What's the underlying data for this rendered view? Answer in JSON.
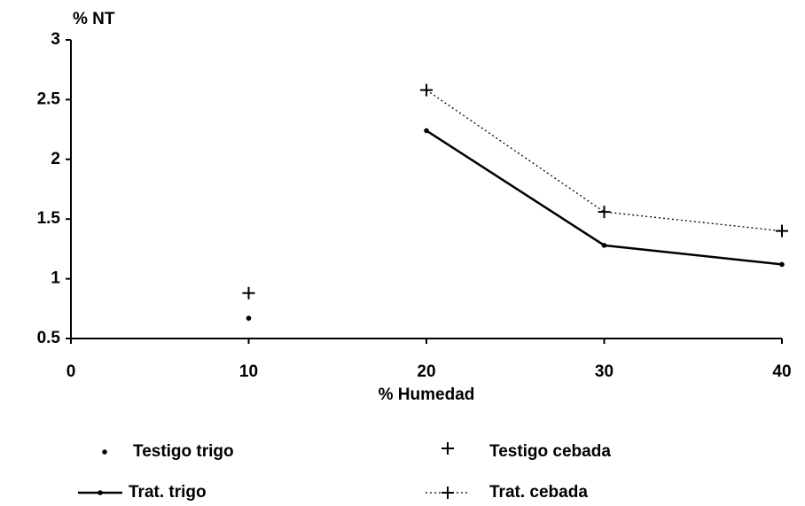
{
  "chart_data": {
    "type": "line",
    "y_label": "% NT",
    "x_label": "% Humedad",
    "x": [
      10,
      20,
      30,
      40
    ],
    "xlim": [
      0,
      40
    ],
    "xticks": [
      0,
      10,
      20,
      30,
      40
    ],
    "ylim": [
      0.5,
      3
    ],
    "yticks": [
      0.5,
      1,
      1.5,
      2,
      2.5,
      3
    ],
    "grid": false,
    "series": [
      {
        "name": "Testigo trigo",
        "color": "#000000",
        "marker": "dot",
        "line": "none",
        "values": [
          0.67,
          null,
          null,
          null
        ]
      },
      {
        "name": "Testigo cebada",
        "color": "#000000",
        "marker": "plus",
        "line": "none",
        "values": [
          0.88,
          null,
          null,
          null
        ]
      },
      {
        "name": "Trat. trigo",
        "color": "#000000",
        "marker": "dot",
        "line": "solid",
        "values": [
          null,
          2.24,
          1.28,
          1.12
        ]
      },
      {
        "name": "Trat. cebada",
        "color": "#000000",
        "marker": "plus",
        "line": "dotted",
        "values": [
          null,
          2.58,
          1.56,
          1.4
        ]
      }
    ]
  }
}
